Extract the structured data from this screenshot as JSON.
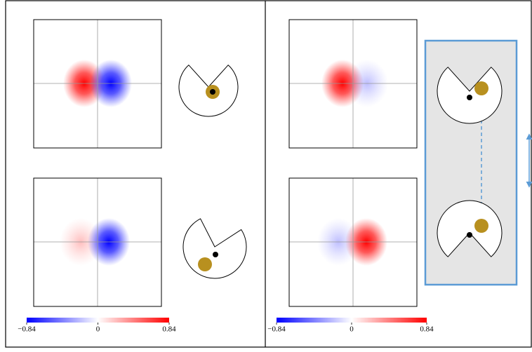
{
  "panels": [
    {
      "colorbar": {
        "lim": [
          -0.84,
          0.84
        ],
        "ticks": [
          {
            "value": -0.84,
            "label": "−0.84"
          },
          0,
          0.84
        ]
      }
    },
    {
      "colorbar": {
        "lim": [
          -0.84,
          0.84
        ],
        "ticks": [
          {
            "value": -0.84,
            "label": "−0.84"
          },
          0,
          0.84
        ]
      }
    }
  ]
}
